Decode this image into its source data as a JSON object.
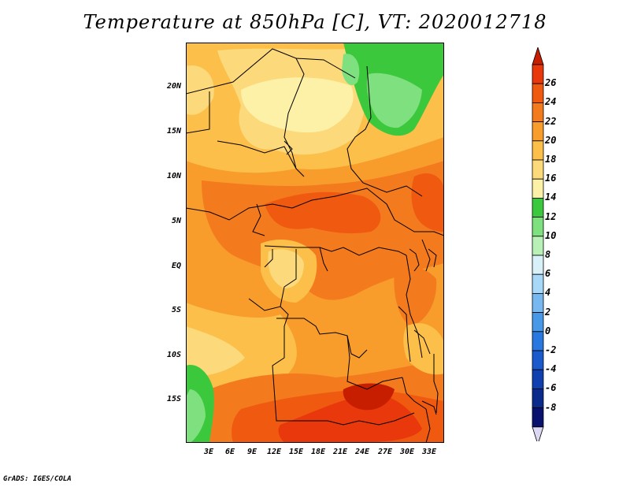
{
  "title": "Temperature at 850hPa [C], VT: 2020012718",
  "footer": "GrADS: IGES/COLA",
  "map": {
    "variable": "Temperature at 850hPa",
    "units": "C",
    "valid_time": "2020012718",
    "lat_ticks": [
      "20N",
      "15N",
      "10N",
      "5N",
      "EQ",
      "5S",
      "10S",
      "15S"
    ],
    "lon_ticks": [
      "3E",
      "6E",
      "9E",
      "12E",
      "15E",
      "18E",
      "21E",
      "24E",
      "27E",
      "30E",
      "33E"
    ]
  },
  "colorbar": {
    "labels": [
      "26",
      "24",
      "22",
      "20",
      "18",
      "16",
      "14",
      "12",
      "10",
      "8",
      "6",
      "4",
      "2",
      "0",
      "-2",
      "-4",
      "-6",
      "-8"
    ],
    "colors": [
      "#e8380c",
      "#f05a10",
      "#f47a1e",
      "#f89c2c",
      "#fbbf4a",
      "#fcd97a",
      "#fdf1a8",
      "#3cc83c",
      "#7ee07e",
      "#b8f0b8",
      "#d8f0f8",
      "#a8d8f8",
      "#78b8f0",
      "#4898e8",
      "#2878e0",
      "#1a5acc",
      "#1040b0",
      "#0a2a8c",
      "#08126e"
    ],
    "top_arrow_color": "#c81e00",
    "bottom_arrow_color": "#dcd8f4"
  }
}
